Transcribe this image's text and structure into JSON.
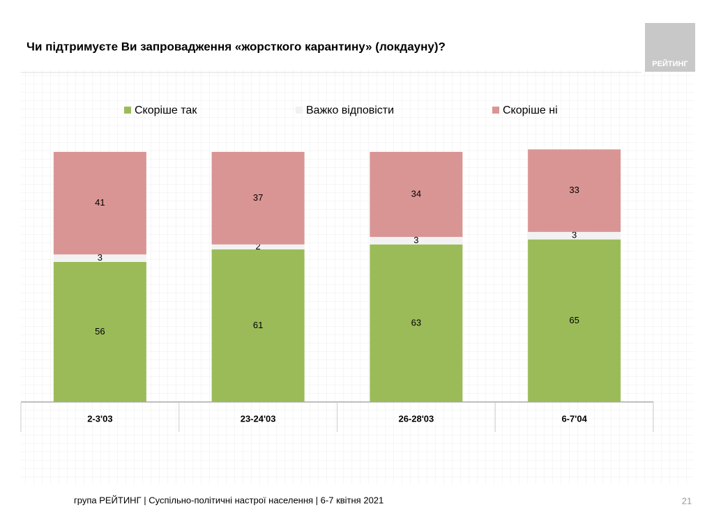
{
  "chart_data": {
    "type": "stacked-bar",
    "title": "Чи підтримуєте Ви запровадження «жорсткого карантину» (локдауну)?",
    "categories": [
      "2-3'03",
      "23-24'03",
      "26-28'03",
      "6-7'04"
    ],
    "series": [
      {
        "name": "Скоріше так",
        "color": "#9bbb59",
        "values": [
          56,
          61,
          63,
          65
        ]
      },
      {
        "name": "Важко відповісти",
        "color": "#f2f2f2",
        "values": [
          3,
          2,
          3,
          3
        ]
      },
      {
        "name": "Скоріше ні",
        "color": "#d99594",
        "values": [
          41,
          37,
          34,
          33
        ]
      }
    ],
    "ylim": [
      0,
      100
    ],
    "legend": "top"
  },
  "logo": "РЕЙТИНГ",
  "footer": "група РЕЙТИНГ | Суспільно-політичні настрої населення | 6-7 квітня 2021",
  "page_number": "21"
}
